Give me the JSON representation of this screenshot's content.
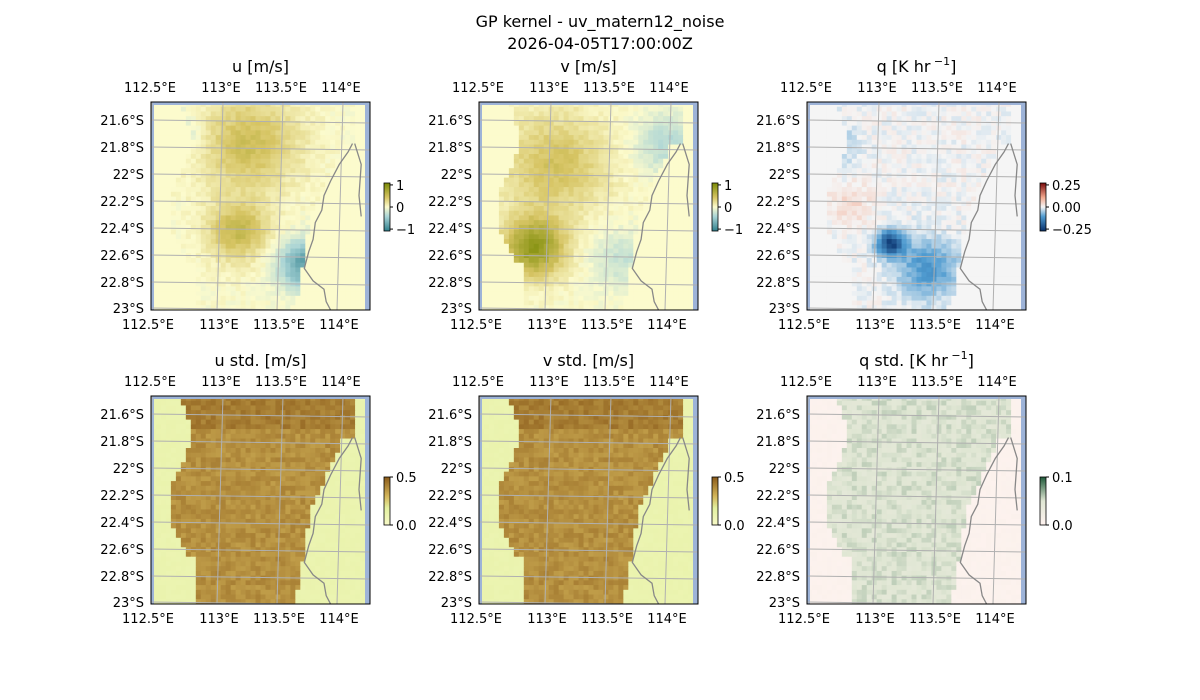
{
  "figure": {
    "title": "GP kernel - uv_matern12_noise",
    "subtitle": "2026-04-05T17:00:00Z"
  },
  "chart_data": [
    {
      "type": "heatmap",
      "title": "u [m/s]",
      "x_ticks": [
        "112.5°E",
        "113°E",
        "113.5°E",
        "114°E"
      ],
      "y_ticks": [
        "21.6°S",
        "21.8°S",
        "22°S",
        "22.2°S",
        "22.4°S",
        "22.6°S",
        "22.8°S",
        "23°S"
      ],
      "extent": {
        "lon": [
          112.5,
          114.2
        ],
        "lat": [
          -21.5,
          -23.0
        ]
      },
      "colorbar": {
        "ticks": [
          "1",
          "0",
          "−1"
        ],
        "range": [
          -1.2,
          1.2
        ]
      },
      "field": "u",
      "palette": "diverging-olive-teal"
    },
    {
      "type": "heatmap",
      "title": "v [m/s]",
      "x_ticks": [
        "112.5°E",
        "113°E",
        "113.5°E",
        "114°E"
      ],
      "y_ticks": [
        "21.6°S",
        "21.8°S",
        "22°S",
        "22.2°S",
        "22.4°S",
        "22.6°S",
        "22.8°S",
        "23°S"
      ],
      "extent": {
        "lon": [
          112.5,
          114.2
        ],
        "lat": [
          -21.5,
          -23.0
        ]
      },
      "colorbar": {
        "ticks": [
          "1",
          "0",
          "−1"
        ],
        "range": [
          -1.2,
          1.2
        ]
      },
      "field": "v",
      "palette": "diverging-olive-teal"
    },
    {
      "type": "heatmap",
      "title": "q [K hr",
      "title_superscript": "−1",
      "title_suffix": "]",
      "x_ticks": [
        "112.5°E",
        "113°E",
        "113.5°E",
        "114°E"
      ],
      "y_ticks": [
        "21.6°S",
        "21.8°S",
        "22°S",
        "22.2°S",
        "22.4°S",
        "22.6°S",
        "22.8°S",
        "23°S"
      ],
      "extent": {
        "lon": [
          112.5,
          114.2
        ],
        "lat": [
          -21.5,
          -23.0
        ]
      },
      "colorbar": {
        "ticks": [
          "0.25",
          "0.00",
          "−0.25"
        ],
        "range": [
          -0.35,
          0.35
        ]
      },
      "field": "q",
      "palette": "diverging-red-blue"
    },
    {
      "type": "heatmap",
      "title": "u std. [m/s]",
      "x_ticks": [
        "112.5°E",
        "113°E",
        "113.5°E",
        "114°E"
      ],
      "y_ticks": [
        "21.6°S",
        "21.8°S",
        "22°S",
        "22.2°S",
        "22.4°S",
        "22.6°S",
        "22.8°S",
        "23°S"
      ],
      "extent": {
        "lon": [
          112.5,
          114.2
        ],
        "lat": [
          -21.5,
          -23.0
        ]
      },
      "colorbar": {
        "ticks": [
          "0.5",
          "0.0"
        ],
        "range": [
          0.0,
          0.6
        ]
      },
      "field": "ustd",
      "palette": "sequential-brown"
    },
    {
      "type": "heatmap",
      "title": "v std. [m/s]",
      "x_ticks": [
        "112.5°E",
        "113°E",
        "113.5°E",
        "114°E"
      ],
      "y_ticks": [
        "21.6°S",
        "21.8°S",
        "22°S",
        "22.2°S",
        "22.4°S",
        "22.6°S",
        "22.8°S",
        "23°S"
      ],
      "extent": {
        "lon": [
          112.5,
          114.2
        ],
        "lat": [
          -21.5,
          -23.0
        ]
      },
      "colorbar": {
        "ticks": [
          "0.5",
          "0.0"
        ],
        "range": [
          0.0,
          0.6
        ]
      },
      "field": "vstd",
      "palette": "sequential-brown"
    },
    {
      "type": "heatmap",
      "title": "q std. [K hr",
      "title_superscript": "−1",
      "title_suffix": "]",
      "x_ticks": [
        "112.5°E",
        "113°E",
        "113.5°E",
        "114°E"
      ],
      "y_ticks": [
        "21.6°S",
        "21.8°S",
        "22°S",
        "22.2°S",
        "22.4°S",
        "22.6°S",
        "22.8°S",
        "23°S"
      ],
      "extent": {
        "lon": [
          112.5,
          114.2
        ],
        "lat": [
          -21.5,
          -23.0
        ]
      },
      "colorbar": {
        "ticks": [
          "0.1",
          "0.0"
        ],
        "range": [
          0.0,
          0.12
        ]
      },
      "field": "qstd",
      "palette": "sequential-pink-green"
    }
  ],
  "colors": {
    "ocean_edge": "#9db3d8",
    "coastline": "#888888",
    "gridline": "#b0b0b0"
  }
}
